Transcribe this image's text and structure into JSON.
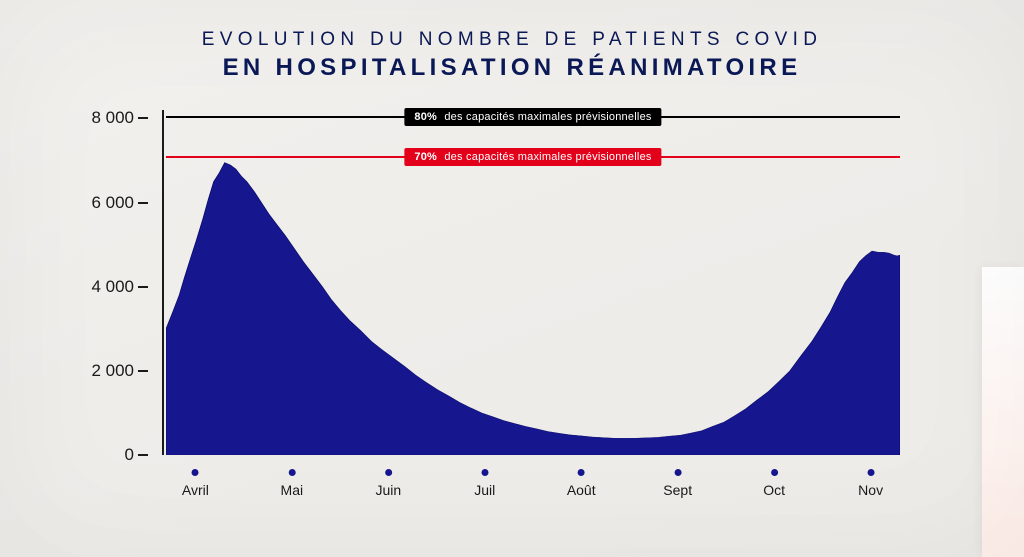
{
  "title": {
    "line1": "EVOLUTION DU NOMBRE DE PATIENTS COVID",
    "line2": "EN HOSPITALISATION RÉANIMATOIRE",
    "color": "#0b1957",
    "line1_fontsize": 19,
    "line2_fontsize": 24,
    "letter_spacing_em": 0.22
  },
  "background_color": "#f1efec",
  "chart": {
    "type": "area",
    "fill_color": "#16168e",
    "stroke_color": "#080866",
    "axis_color": "#1a1a1a",
    "y": {
      "min": 0,
      "max": 8200,
      "ticks": [
        {
          "value": 0,
          "label": "0"
        },
        {
          "value": 2000,
          "label": "2 000"
        },
        {
          "value": 4000,
          "label": "4 000"
        },
        {
          "value": 6000,
          "label": "6 000"
        },
        {
          "value": 8000,
          "label": "8 000"
        }
      ],
      "tick_fontsize": 17,
      "tick_color": "#1a1a1a"
    },
    "x": {
      "labels": [
        "Avril",
        "Mai",
        "Juin",
        "Juil",
        "Août",
        "Sept",
        "Oct",
        "Nov"
      ],
      "dot_color": "#16168e",
      "label_color": "#1a1a1a",
      "label_fontsize": 14
    },
    "thresholds": [
      {
        "value": 8050,
        "line_color": "#000000",
        "label_bg": "#000000",
        "label_bold": "80%",
        "label_text": "des capacités maximales prévisionnelles"
      },
      {
        "value": 7100,
        "line_color": "#e2001a",
        "label_bg": "#e2001a",
        "label_bold": "70%",
        "label_text": "des capacités maximales prévisionnelles"
      }
    ],
    "series": {
      "points": [
        [
          0.0,
          3000
        ],
        [
          0.018,
          3800
        ],
        [
          0.032,
          4600
        ],
        [
          0.05,
          5600
        ],
        [
          0.065,
          6500
        ],
        [
          0.08,
          6950
        ],
        [
          0.095,
          6800
        ],
        [
          0.11,
          6500
        ],
        [
          0.13,
          6000
        ],
        [
          0.15,
          5500
        ],
        [
          0.175,
          4900
        ],
        [
          0.2,
          4300
        ],
        [
          0.225,
          3700
        ],
        [
          0.25,
          3200
        ],
        [
          0.28,
          2700
        ],
        [
          0.31,
          2300
        ],
        [
          0.34,
          1900
        ],
        [
          0.37,
          1550
        ],
        [
          0.4,
          1250
        ],
        [
          0.43,
          1000
        ],
        [
          0.46,
          820
        ],
        [
          0.49,
          680
        ],
        [
          0.52,
          560
        ],
        [
          0.55,
          480
        ],
        [
          0.58,
          430
        ],
        [
          0.61,
          400
        ],
        [
          0.64,
          400
        ],
        [
          0.67,
          420
        ],
        [
          0.7,
          470
        ],
        [
          0.73,
          580
        ],
        [
          0.76,
          780
        ],
        [
          0.79,
          1100
        ],
        [
          0.82,
          1500
        ],
        [
          0.85,
          2000
        ],
        [
          0.88,
          2700
        ],
        [
          0.905,
          3400
        ],
        [
          0.925,
          4100
        ],
        [
          0.945,
          4600
        ],
        [
          0.962,
          4850
        ],
        [
          0.978,
          4820
        ],
        [
          0.992,
          4750
        ],
        [
          1.0,
          4750
        ]
      ]
    }
  }
}
